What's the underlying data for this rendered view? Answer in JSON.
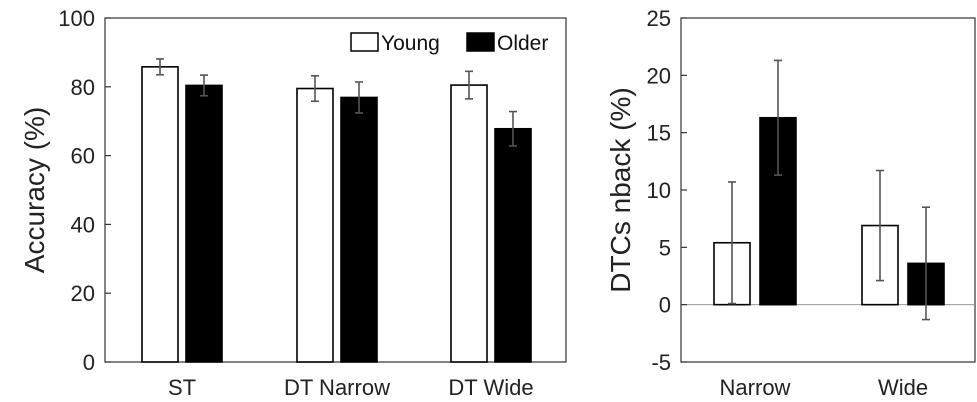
{
  "chart_data": [
    {
      "type": "bar",
      "ylabel": "Accuracy (%)",
      "xlabel": "",
      "categories": [
        "ST",
        "DT Narrow",
        "DT Wide"
      ],
      "ylim": [
        0,
        100
      ],
      "yticks": [
        0,
        20,
        40,
        60,
        80,
        100
      ],
      "grid": false,
      "legend": {
        "position": "top-right",
        "entries": [
          {
            "label": "Young",
            "color": "#ffffff"
          },
          {
            "label": "Older",
            "color": "#000000"
          }
        ]
      },
      "series": [
        {
          "name": "Young",
          "color": "#ffffff",
          "values": [
            85.8,
            79.5,
            80.5
          ],
          "errors": [
            2.3,
            3.7,
            4.0
          ]
        },
        {
          "name": "Older",
          "color": "#000000",
          "values": [
            80.4,
            76.9,
            67.8
          ],
          "errors": [
            3.0,
            4.5,
            5.0
          ]
        }
      ]
    },
    {
      "type": "bar",
      "ylabel": "DTCs nback (%)",
      "xlabel": "",
      "categories": [
        "Narrow",
        "Wide"
      ],
      "ylim": [
        -5,
        25
      ],
      "yticks": [
        -5,
        0,
        5,
        10,
        15,
        20,
        25
      ],
      "grid": false,
      "zero_line": true,
      "series": [
        {
          "name": "Young",
          "color": "#ffffff",
          "values": [
            5.4,
            6.9
          ],
          "errors": [
            5.3,
            4.8
          ]
        },
        {
          "name": "Older",
          "color": "#000000",
          "values": [
            16.3,
            3.6
          ],
          "errors": [
            5.0,
            4.9
          ]
        }
      ]
    }
  ]
}
